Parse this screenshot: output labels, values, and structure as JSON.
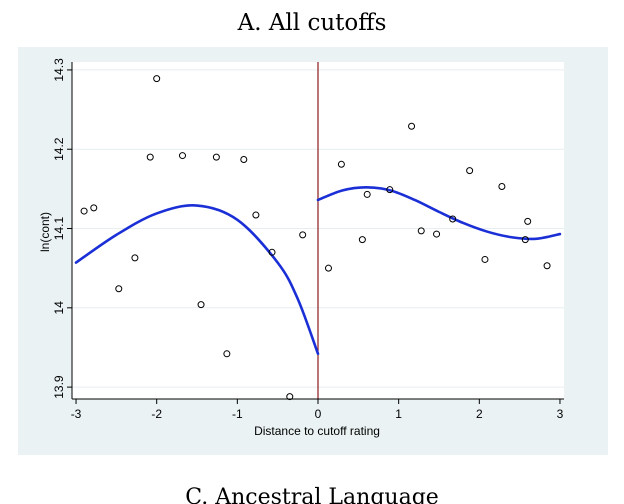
{
  "figure": {
    "title": "A. All cutoffs",
    "caption": "C. Ancestral Language"
  },
  "chart_data": {
    "type": "scatter",
    "title": "A. All cutoffs",
    "xlabel": "Distance to cutoff rating",
    "ylabel": "ln(cont)",
    "xlim": [
      -3.05,
      3.05
    ],
    "ylim": [
      13.885,
      14.31
    ],
    "xticks": [
      -3,
      -2,
      -1,
      0,
      1,
      2,
      3
    ],
    "xtick_labels": [
      "-3",
      "-2",
      "-1",
      "0",
      "1",
      "2",
      "3"
    ],
    "yticks": [
      13.9,
      14,
      14.1,
      14.2,
      14.3
    ],
    "ytick_labels": [
      "13.9",
      "14",
      "14.1",
      "14.2",
      "14.3"
    ],
    "grid": true,
    "cutoff_line_x": 0,
    "colors": {
      "background": "#eaf2f3",
      "plot_area": "#ffffff",
      "fit_line": "#1a2fd6",
      "cutoff_line": "#8b1a1a",
      "markers": "#000000"
    },
    "series": [
      {
        "kind": "points",
        "x": [
          -2.9,
          -2.78,
          -2.47,
          -2.27,
          -2.08,
          -2.0,
          -1.68,
          -1.45,
          -1.26,
          -1.13,
          -0.92,
          -0.77,
          -0.57,
          -0.35,
          -0.19,
          0.13,
          0.29,
          0.55,
          0.61,
          0.89,
          1.16,
          1.28,
          1.47,
          1.67,
          1.88,
          2.07,
          2.28,
          2.57,
          2.6,
          2.84
        ],
        "y": [
          14.122,
          14.126,
          14.024,
          14.063,
          14.19,
          14.289,
          14.192,
          14.004,
          14.19,
          13.942,
          14.187,
          14.117,
          14.07,
          13.888,
          14.092,
          14.05,
          14.181,
          14.086,
          14.143,
          14.149,
          14.229,
          14.097,
          14.093,
          14.112,
          14.173,
          14.061,
          14.153,
          14.086,
          14.109,
          14.053
        ]
      },
      {
        "kind": "fit_left",
        "x": [
          -3.0,
          -2.5,
          -2.0,
          -1.5,
          -1.0,
          -0.5,
          -0.25,
          0.0
        ],
        "y": [
          14.057,
          14.092,
          14.119,
          14.129,
          14.111,
          14.057,
          14.011,
          13.942
        ]
      },
      {
        "kind": "fit_right",
        "x": [
          0.0,
          0.3,
          0.6,
          0.9,
          1.2,
          1.5,
          1.8,
          2.1,
          2.4,
          2.7,
          3.0
        ],
        "y": [
          14.136,
          14.148,
          14.152,
          14.148,
          14.136,
          14.121,
          14.107,
          14.096,
          14.089,
          14.087,
          14.093
        ]
      }
    ]
  }
}
